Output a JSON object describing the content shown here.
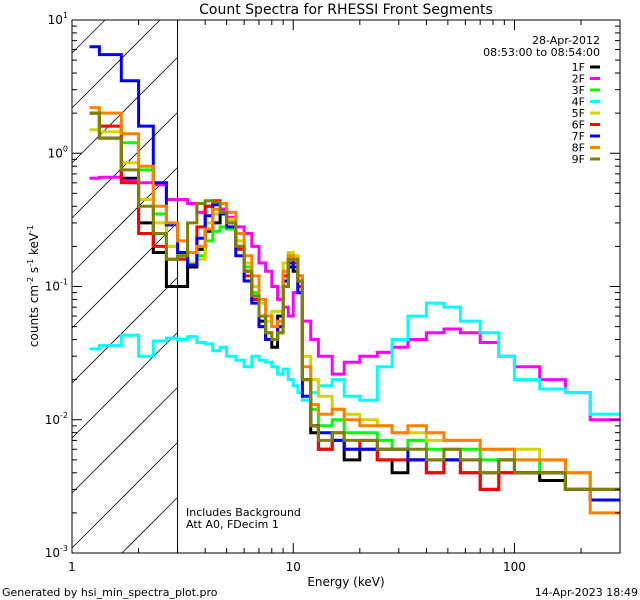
{
  "chart_data": {
    "type": "line",
    "title": "Count Spectra for RHESSI Front Segments",
    "xlabel": "Energy (keV)",
    "ylabel": "counts cm^-2 s^-1 keV^-1",
    "ylabel_parts": {
      "base": "counts cm",
      "exp1": "-2",
      "mid": " s",
      "exp2": "-1",
      "mid2": " keV",
      "exp3": "-1"
    },
    "xscale": "log",
    "yscale": "log",
    "xlim": [
      1,
      300
    ],
    "ylim": [
      0.001,
      10
    ],
    "x_ticks": [
      {
        "value": 1,
        "label": "1"
      },
      {
        "value": 10,
        "label": "10"
      },
      {
        "value": 100,
        "label": "100"
      }
    ],
    "y_ticks": [
      {
        "value": 0.001,
        "base": "10",
        "exp": "-3"
      },
      {
        "value": 0.01,
        "base": "10",
        "exp": "-2"
      },
      {
        "value": 0.1,
        "base": "10",
        "exp": "-1"
      },
      {
        "value": 1,
        "base": "10",
        "exp": "0"
      },
      {
        "value": 10,
        "base": "10",
        "exp": "1"
      }
    ],
    "hatched_region_kev": [
      1,
      3
    ],
    "legend_placement": "top-right",
    "date": "28-Apr-2012",
    "time_range": "08:53:00 to 08:54:00",
    "annotations": [
      "Includes Background",
      "Att A0, FDecim 1"
    ],
    "bin_edges_kev": [
      1.2,
      1.33,
      1.67,
      2.0,
      2.33,
      2.67,
      3.0,
      3.33,
      3.67,
      4.0,
      4.33,
      4.67,
      5.0,
      5.5,
      6.0,
      6.5,
      7.0,
      7.5,
      8.0,
      8.5,
      9.0,
      9.5,
      10.0,
      10.5,
      11.0,
      12,
      13,
      15,
      17,
      20,
      24,
      28,
      33,
      40,
      48,
      57,
      70,
      85,
      100,
      130,
      170,
      220,
      300
    ],
    "series": [
      {
        "name": "1F",
        "color": "#000000",
        "values": [
          2.0,
          1.3,
          0.65,
          0.3,
          0.18,
          0.1,
          0.1,
          0.14,
          0.19,
          0.26,
          0.3,
          0.38,
          0.32,
          0.2,
          0.13,
          0.08,
          0.055,
          0.04,
          0.035,
          0.06,
          0.1,
          0.14,
          0.13,
          0.09,
          0.02,
          0.008,
          0.006,
          0.007,
          0.005,
          0.006,
          0.005,
          0.004,
          0.005,
          0.004,
          0.005,
          0.004,
          0.003,
          0.004,
          0.004,
          0.0035,
          0.003,
          0.0025
        ]
      },
      {
        "name": "2F",
        "color": "#ff00ff",
        "values": [
          0.65,
          0.66,
          0.62,
          0.6,
          0.58,
          0.45,
          0.45,
          0.42,
          0.36,
          0.4,
          0.42,
          0.38,
          0.33,
          0.28,
          0.25,
          0.2,
          0.15,
          0.13,
          0.1,
          0.08,
          0.07,
          0.06,
          0.09,
          0.12,
          0.055,
          0.04,
          0.03,
          0.022,
          0.027,
          0.03,
          0.032,
          0.035,
          0.04,
          0.045,
          0.048,
          0.045,
          0.038,
          0.03,
          0.025,
          0.02,
          0.016,
          0.01
        ]
      },
      {
        "name": "3F",
        "color": "#00ff00",
        "values": [
          2.0,
          1.6,
          1.2,
          0.75,
          0.35,
          0.2,
          0.17,
          0.15,
          0.17,
          0.22,
          0.26,
          0.28,
          0.27,
          0.2,
          0.14,
          0.09,
          0.06,
          0.045,
          0.04,
          0.045,
          0.11,
          0.17,
          0.17,
          0.1,
          0.02,
          0.012,
          0.009,
          0.01,
          0.008,
          0.008,
          0.007,
          0.006,
          0.007,
          0.006,
          0.006,
          0.006,
          0.005,
          0.005,
          0.005,
          0.004,
          0.004,
          0.003
        ]
      },
      {
        "name": "4F",
        "color": "#00ffff",
        "values": [
          0.034,
          0.036,
          0.043,
          0.03,
          0.039,
          0.041,
          0.04,
          0.042,
          0.038,
          0.037,
          0.033,
          0.035,
          0.03,
          0.028,
          0.025,
          0.03,
          0.028,
          0.027,
          0.025,
          0.022,
          0.024,
          0.02,
          0.018,
          0.016,
          0.014,
          0.016,
          0.018,
          0.02,
          0.015,
          0.014,
          0.025,
          0.04,
          0.06,
          0.075,
          0.07,
          0.055,
          0.045,
          0.03,
          0.02,
          0.017,
          0.016,
          0.011
        ]
      },
      {
        "name": "5F",
        "color": "#d4d400",
        "values": [
          1.5,
          1.45,
          0.85,
          0.45,
          0.3,
          0.2,
          0.17,
          0.15,
          0.16,
          0.3,
          0.35,
          0.35,
          0.32,
          0.22,
          0.15,
          0.1,
          0.075,
          0.055,
          0.065,
          0.065,
          0.15,
          0.18,
          0.17,
          0.12,
          0.03,
          0.02,
          0.015,
          0.012,
          0.011,
          0.01,
          0.009,
          0.008,
          0.008,
          0.007,
          0.007,
          0.007,
          0.006,
          0.006,
          0.006,
          0.005,
          0.004,
          0.003
        ]
      },
      {
        "name": "6F",
        "color": "#ff0000",
        "values": [
          2.0,
          1.6,
          0.6,
          0.25,
          0.2,
          0.16,
          0.16,
          0.18,
          0.28,
          0.4,
          0.44,
          0.42,
          0.3,
          0.19,
          0.12,
          0.08,
          0.05,
          0.04,
          0.04,
          0.05,
          0.12,
          0.16,
          0.15,
          0.1,
          0.02,
          0.009,
          0.006,
          0.008,
          0.006,
          0.007,
          0.005,
          0.005,
          0.005,
          0.004,
          0.005,
          0.004,
          0.003,
          0.004,
          0.004,
          0.004,
          0.003,
          0.003
        ]
      },
      {
        "name": "7F",
        "color": "#0000ff",
        "values": [
          6.3,
          5.5,
          3.5,
          1.6,
          0.6,
          0.29,
          0.18,
          0.145,
          0.23,
          0.34,
          0.41,
          0.35,
          0.28,
          0.17,
          0.11,
          0.075,
          0.05,
          0.04,
          0.04,
          0.05,
          0.11,
          0.15,
          0.14,
          0.09,
          0.015,
          0.009,
          0.008,
          0.007,
          0.006,
          0.006,
          0.006,
          0.006,
          0.005,
          0.005,
          0.005,
          0.005,
          0.004,
          0.005,
          0.004,
          0.004,
          0.003,
          0.0025
        ]
      },
      {
        "name": "8F",
        "color": "#ff8000",
        "values": [
          2.2,
          2.0,
          1.4,
          0.8,
          0.4,
          0.3,
          0.22,
          0.18,
          0.2,
          0.27,
          0.38,
          0.42,
          0.36,
          0.25,
          0.17,
          0.12,
          0.08,
          0.06,
          0.05,
          0.055,
          0.13,
          0.17,
          0.16,
          0.12,
          0.025,
          0.013,
          0.011,
          0.012,
          0.01,
          0.009,
          0.009,
          0.008,
          0.009,
          0.008,
          0.007,
          0.007,
          0.006,
          0.006,
          0.005,
          0.005,
          0.004,
          0.002
        ]
      },
      {
        "name": "9F",
        "color": "#808000",
        "values": [
          2.0,
          1.3,
          0.75,
          0.4,
          0.25,
          0.16,
          0.17,
          0.3,
          0.42,
          0.44,
          0.43,
          0.36,
          0.3,
          0.2,
          0.13,
          0.085,
          0.06,
          0.045,
          0.04,
          0.045,
          0.1,
          0.16,
          0.16,
          0.11,
          0.02,
          0.009,
          0.007,
          0.008,
          0.007,
          0.007,
          0.006,
          0.006,
          0.006,
          0.005,
          0.006,
          0.005,
          0.004,
          0.005,
          0.004,
          0.004,
          0.003,
          0.003
        ]
      }
    ]
  },
  "footer": {
    "generated_by": "Generated by hsi_min_spectra_plot.pro",
    "timestamp": "14-Apr-2023 18:49"
  }
}
